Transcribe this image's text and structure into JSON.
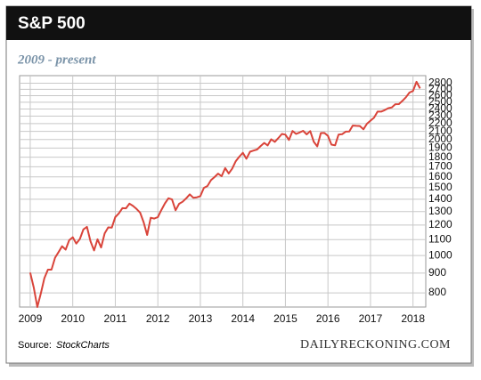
{
  "chart_data": {
    "type": "line",
    "title": "S&P 500",
    "subtitle": "2009 - present",
    "source_label": "Source:",
    "source_name": "StockCharts",
    "brand": "DAILYRECKONING.COM",
    "x": [
      2009,
      2009.083,
      2009.167,
      2009.25,
      2009.333,
      2009.417,
      2009.5,
      2009.583,
      2009.667,
      2009.75,
      2009.833,
      2009.917,
      2010,
      2010.083,
      2010.167,
      2010.25,
      2010.333,
      2010.417,
      2010.5,
      2010.583,
      2010.667,
      2010.75,
      2010.833,
      2010.917,
      2011,
      2011.083,
      2011.167,
      2011.25,
      2011.333,
      2011.417,
      2011.5,
      2011.583,
      2011.667,
      2011.75,
      2011.833,
      2011.917,
      2012,
      2012.083,
      2012.167,
      2012.25,
      2012.333,
      2012.417,
      2012.5,
      2012.583,
      2012.667,
      2012.75,
      2012.833,
      2012.917,
      2013,
      2013.083,
      2013.167,
      2013.25,
      2013.333,
      2013.417,
      2013.5,
      2013.583,
      2013.667,
      2013.75,
      2013.833,
      2013.917,
      2014,
      2014.083,
      2014.167,
      2014.25,
      2014.333,
      2014.417,
      2014.5,
      2014.583,
      2014.667,
      2014.75,
      2014.833,
      2014.917,
      2015,
      2015.083,
      2015.167,
      2015.25,
      2015.333,
      2015.417,
      2015.5,
      2015.583,
      2015.667,
      2015.75,
      2015.833,
      2015.917,
      2016,
      2016.083,
      2016.167,
      2016.25,
      2016.333,
      2016.417,
      2016.5,
      2016.583,
      2016.667,
      2016.75,
      2016.833,
      2016.917,
      2017,
      2017.083,
      2017.167,
      2017.25,
      2017.333,
      2017.417,
      2017.5,
      2017.583,
      2017.667,
      2017.75,
      2017.833,
      2017.917,
      2018,
      2018.083,
      2018.167
    ],
    "series": [
      {
        "color": "#d9443a",
        "values": [
          903,
          826,
          735,
          798,
          873,
          919,
          919,
          987,
          1021,
          1057,
          1036,
          1096,
          1115,
          1074,
          1104,
          1169,
          1187,
          1089,
          1031,
          1102,
          1049,
          1141,
          1183,
          1181,
          1258,
          1286,
          1327,
          1326,
          1364,
          1345,
          1321,
          1292,
          1219,
          1131,
          1253,
          1247,
          1258,
          1312,
          1366,
          1408,
          1398,
          1310,
          1362,
          1379,
          1407,
          1441,
          1412,
          1416,
          1426,
          1498,
          1515,
          1569,
          1598,
          1631,
          1606,
          1686,
          1633,
          1682,
          1757,
          1806,
          1848,
          1783,
          1859,
          1872,
          1884,
          1924,
          1960,
          1931,
          2003,
          1972,
          2018,
          2068,
          2059,
          1995,
          2105,
          2068,
          2086,
          2107,
          2063,
          2104,
          1972,
          1920,
          2079,
          2080,
          2044,
          1940,
          1932,
          2060,
          2065,
          2097,
          2099,
          2174,
          2171,
          2168,
          2126,
          2199,
          2239,
          2279,
          2364,
          2363,
          2384,
          2412,
          2423,
          2470,
          2472,
          2519,
          2575,
          2648,
          2674,
          2824,
          2714
        ]
      }
    ],
    "xlim": [
      2008.75,
      2018.3
    ],
    "xticks": [
      2009,
      2010,
      2011,
      2012,
      2013,
      2014,
      2015,
      2016,
      2017,
      2018
    ],
    "ylim": [
      735,
      2930
    ],
    "yticks": [
      800,
      900,
      1000,
      1100,
      1200,
      1300,
      1400,
      1500,
      1600,
      1700,
      1800,
      1900,
      2000,
      2100,
      2200,
      2300,
      2400,
      2500,
      2600,
      2700,
      2800
    ],
    "log_scale": true,
    "grid": true
  }
}
